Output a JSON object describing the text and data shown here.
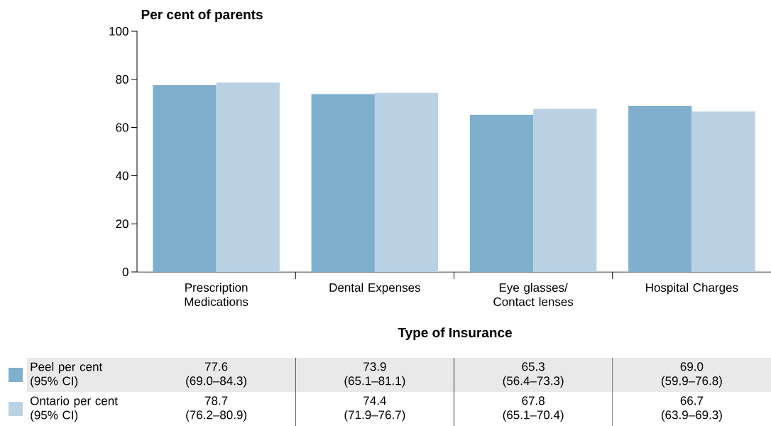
{
  "chart_data": {
    "type": "bar",
    "ylabel": "Per cent of parents",
    "xlabel": "Type of Insurance",
    "categories": [
      "Prescription Medications",
      "Dental Expenses",
      "Eye glasses/ Contact lenses",
      "Hospital Charges"
    ],
    "series": [
      {
        "name": "Peel per cent (95% CI)",
        "color": "#7fafcc",
        "values": [
          77.6,
          73.9,
          65.3,
          69.0
        ],
        "value_labels": [
          "77.6 (69.0–84.3)",
          "73.9 (65.1–81.1)",
          "65.3 (56.4–73.3)",
          "69.0 (59.9–76.8)"
        ]
      },
      {
        "name": "Ontario per cent (95% CI)",
        "color": "#b9d1e3",
        "values": [
          78.7,
          74.4,
          67.8,
          66.7
        ],
        "value_labels": [
          "78.7 (76.2–80.9)",
          "74.4 (71.9–76.7)",
          "67.8 (65.1–70.4)",
          "66.7 (63.9–69.3)"
        ]
      }
    ],
    "ylim": [
      0,
      100
    ],
    "yticks": [
      0,
      20,
      40,
      60,
      80,
      100
    ],
    "legend": "bottom"
  }
}
